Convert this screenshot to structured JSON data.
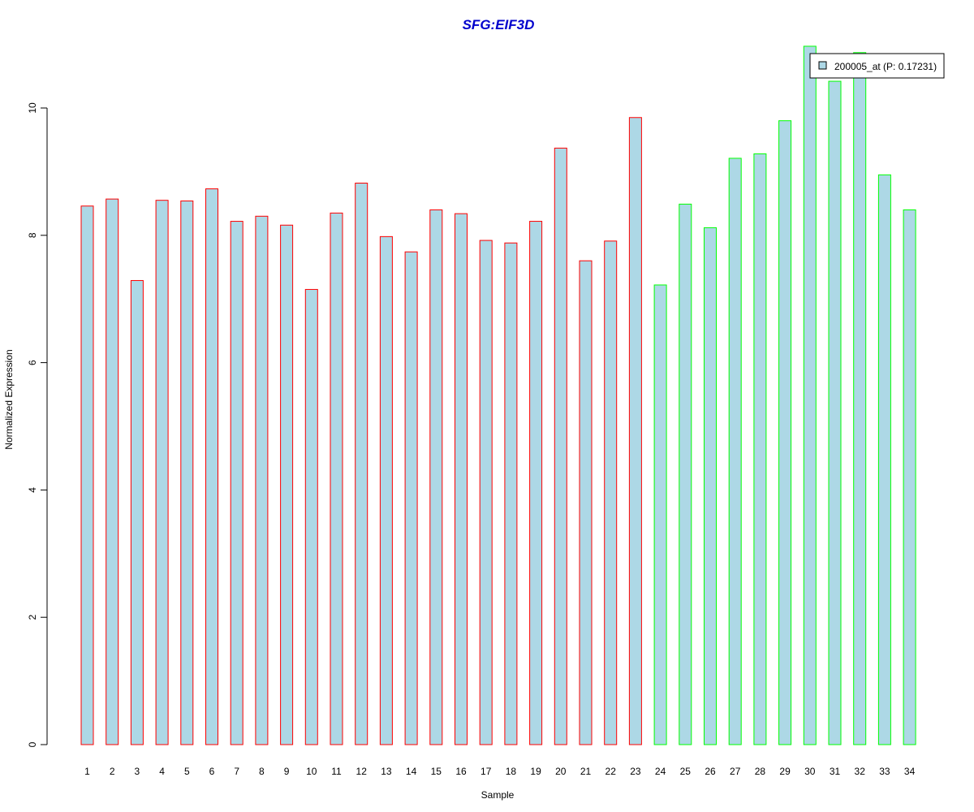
{
  "chart_data": {
    "type": "bar",
    "title": "SFG:EIF3D",
    "xlabel": "Sample",
    "ylabel": "Normalized Expression",
    "ylim": [
      0,
      10
    ],
    "yticks": [
      0,
      2,
      4,
      6,
      8,
      10
    ],
    "categories": [
      "1",
      "2",
      "3",
      "4",
      "5",
      "6",
      "7",
      "8",
      "9",
      "10",
      "11",
      "12",
      "13",
      "14",
      "15",
      "16",
      "17",
      "18",
      "19",
      "20",
      "21",
      "22",
      "23",
      "24",
      "25",
      "26",
      "27",
      "28",
      "29",
      "30",
      "31",
      "32",
      "33",
      "34"
    ],
    "values": [
      8.46,
      8.57,
      7.29,
      8.55,
      8.54,
      8.73,
      8.22,
      8.3,
      8.16,
      7.15,
      8.35,
      8.82,
      7.98,
      7.74,
      8.4,
      8.34,
      7.92,
      7.88,
      8.22,
      9.37,
      7.6,
      7.91,
      9.85,
      7.22,
      8.49,
      8.12,
      9.21,
      9.28,
      9.8,
      10.97,
      10.42,
      10.87,
      8.95,
      8.4
    ],
    "groups": [
      1,
      1,
      1,
      1,
      1,
      1,
      1,
      1,
      1,
      1,
      1,
      1,
      1,
      1,
      1,
      1,
      1,
      1,
      1,
      1,
      1,
      1,
      1,
      2,
      2,
      2,
      2,
      2,
      2,
      2,
      2,
      2,
      2,
      2
    ],
    "legend": {
      "label": "200005_at (P: 0.17231)",
      "placement": "top-right"
    },
    "colors": {
      "fill": "#ADD8E6",
      "group1_border": "#FF0000",
      "group2_border": "#00FF00",
      "title": "#0000CD",
      "axis": "#000000"
    },
    "grid": false
  }
}
